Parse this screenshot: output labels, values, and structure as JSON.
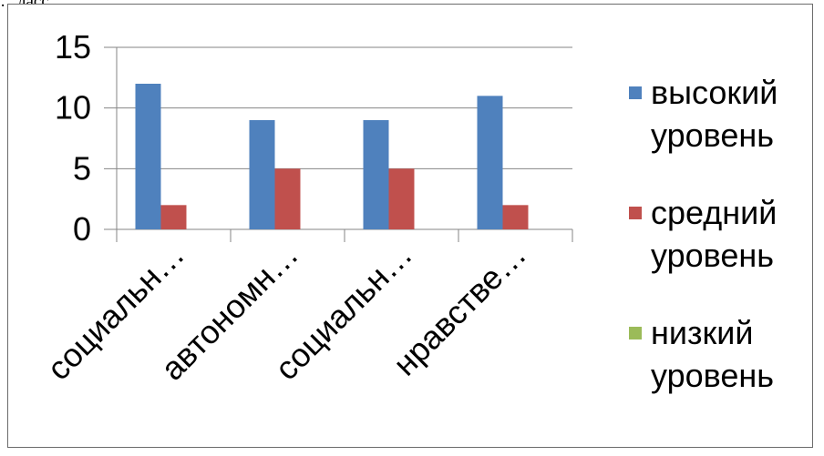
{
  "header_fragment": "…ласс",
  "chart_data": {
    "type": "bar",
    "categories": [
      "социальн…",
      "автономн…",
      "социальн…",
      "нравстве…"
    ],
    "series": [
      {
        "name": "высокий уровень",
        "color": "#4f81bd",
        "values": [
          12,
          9,
          9,
          11
        ]
      },
      {
        "name": "средний уровень",
        "color": "#c0504d",
        "values": [
          2,
          5,
          5,
          2
        ]
      },
      {
        "name": "низкий уровень",
        "color": "#9bbb59",
        "values": [
          0,
          0,
          0,
          0
        ]
      }
    ],
    "ylim": [
      0,
      15
    ],
    "yticks": [
      "0",
      "5",
      "10",
      "15"
    ],
    "grid": true,
    "legend_position": "right"
  }
}
